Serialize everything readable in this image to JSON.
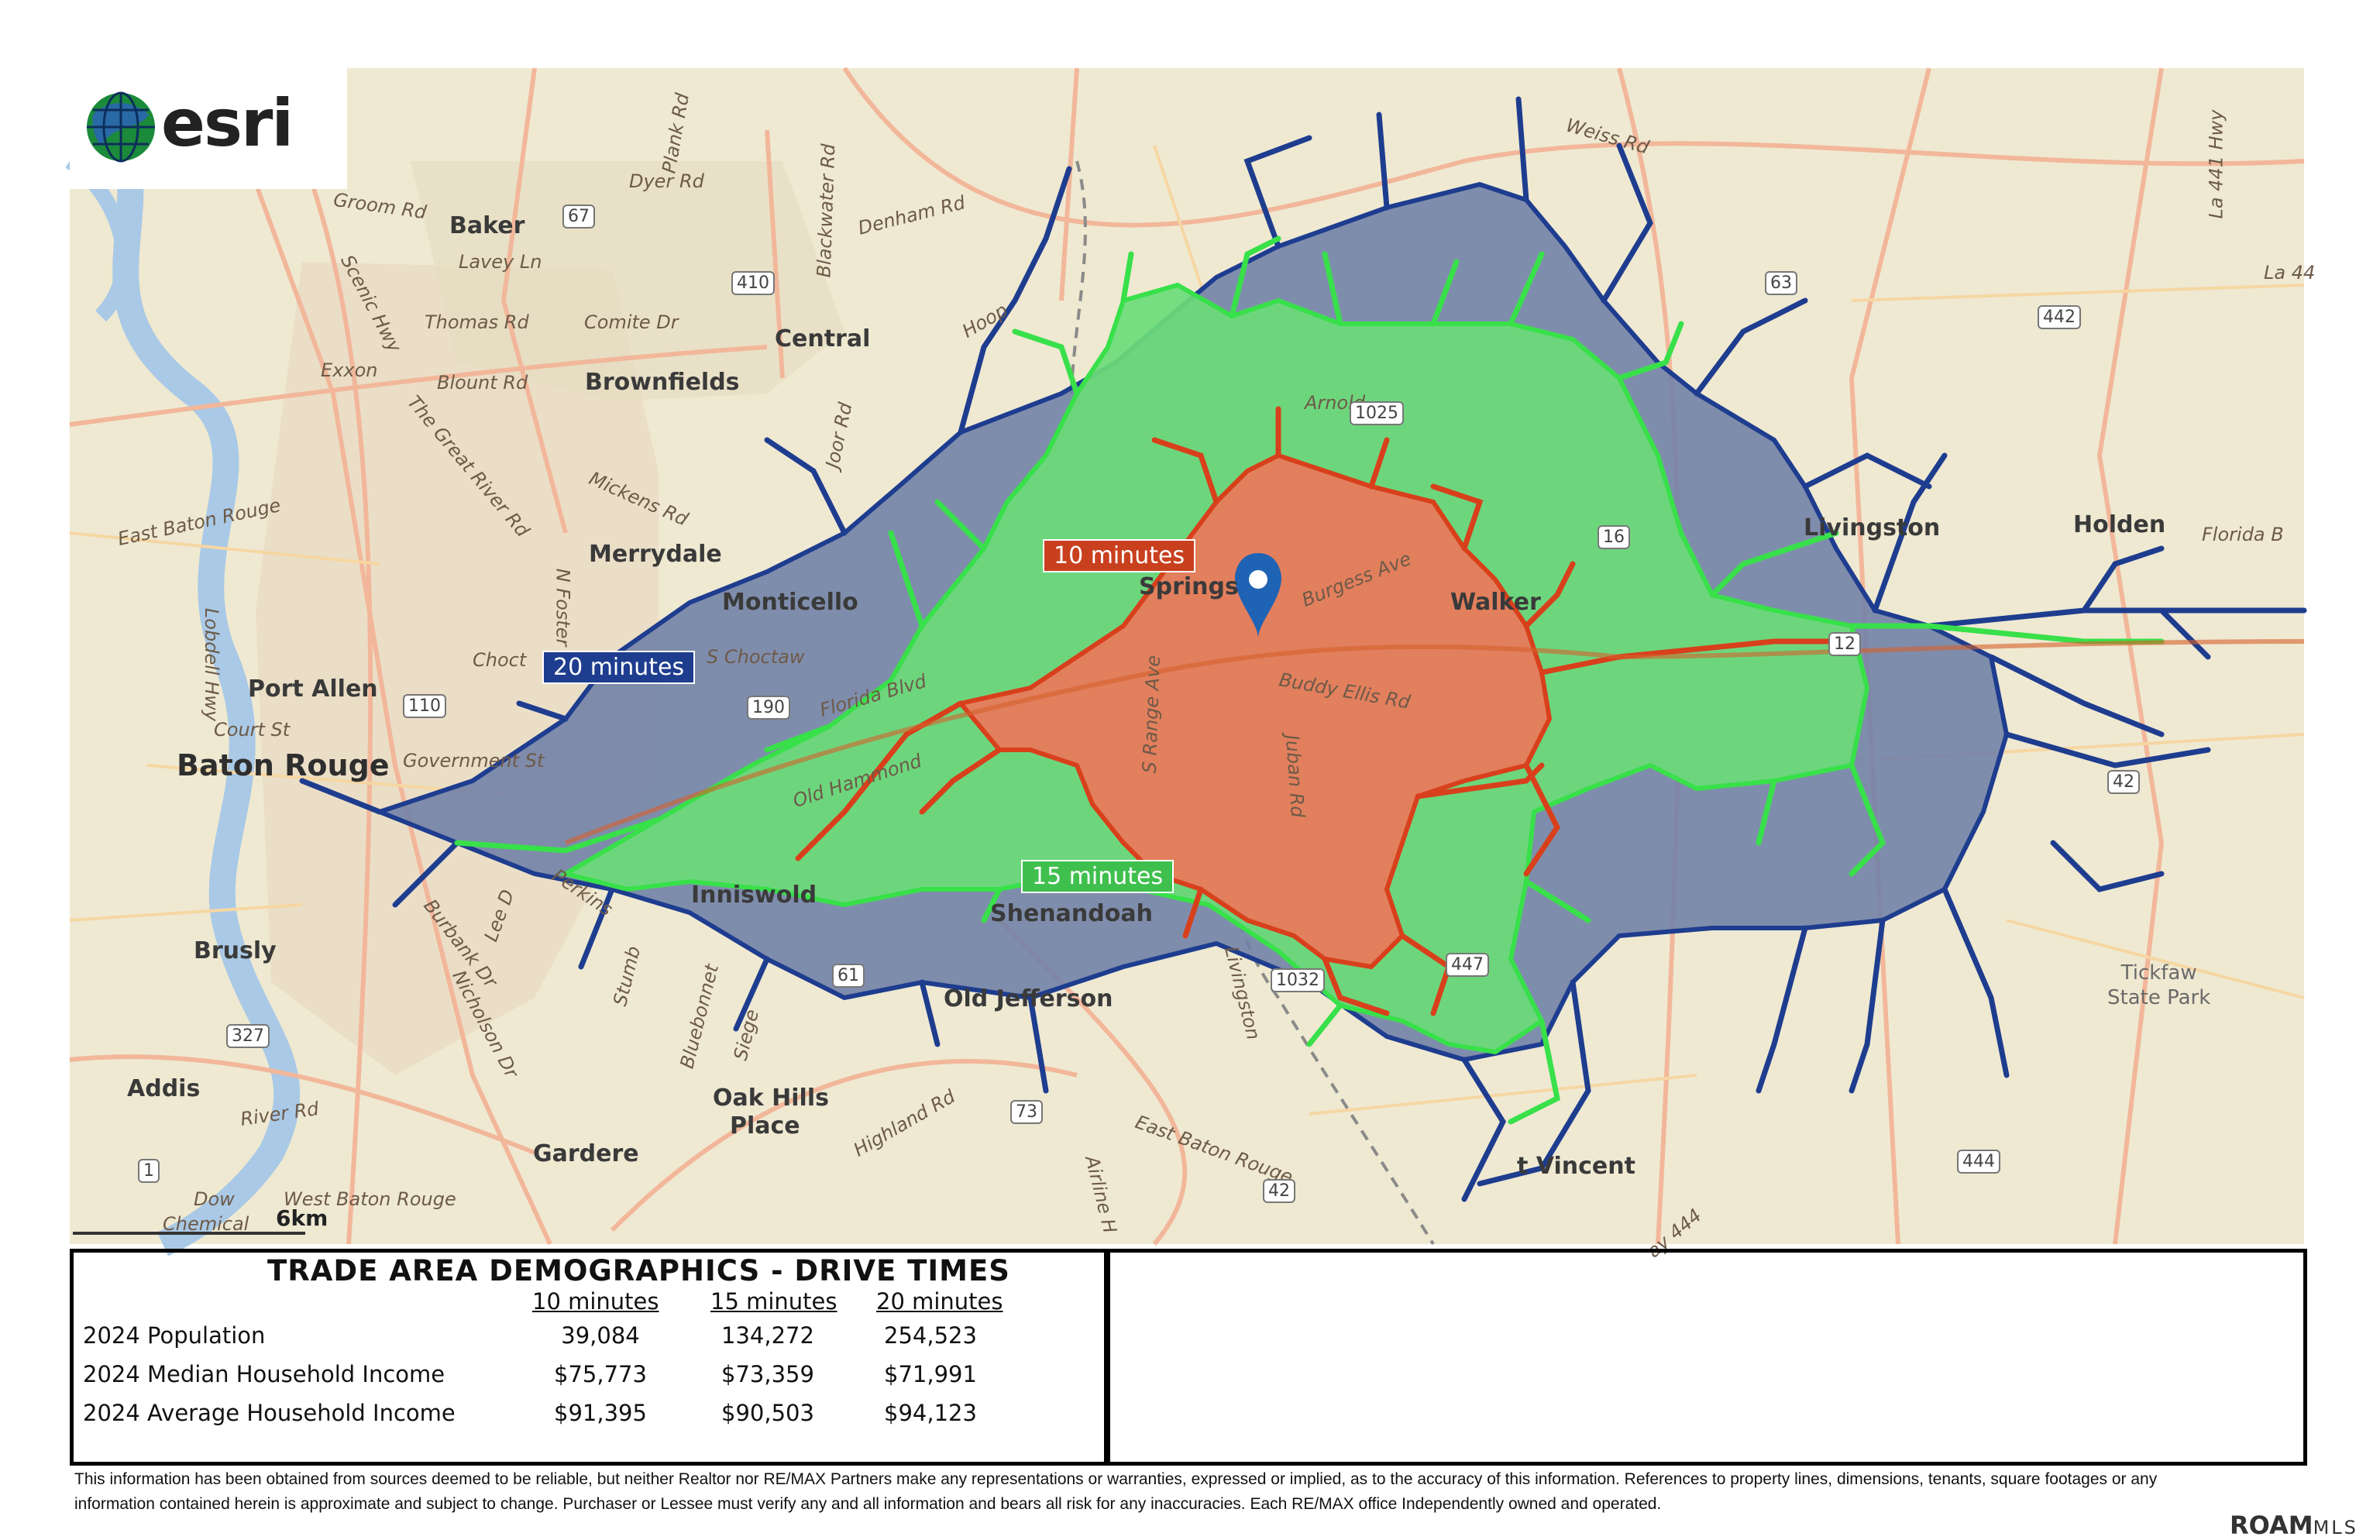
{
  "map": {
    "places": {
      "baker": "Baker",
      "lavey": "Lavey Ln",
      "central": "Central",
      "brownfields": "Brownfields",
      "merrydale": "Merrydale",
      "monticello": "Monticello",
      "port_allen": "Port Allen",
      "baton_rouge": "Baton Rouge",
      "court_st": "Court St",
      "government_st": "Government St",
      "brusly": "Brusly",
      "addis": "Addis",
      "inniswold": "Inniswold",
      "shenandoah": "Shenandoah",
      "old_jefferson": "Old Jefferson",
      "oak_hills": "Oak Hills",
      "place": "Place",
      "gardere": "Gardere",
      "springs": "Springs",
      "walker": "Walker",
      "livingston": "Livingston",
      "holden": "Holden",
      "tickfaw": "Tickfaw",
      "state_park": "State Park",
      "vincent": "t Vincent",
      "dow": "Dow",
      "chemical": "Chemical",
      "west_baton_rouge": "West Baton Rouge",
      "east_baton_rouge": "East Baton Rouge",
      "exxon": "Exxon"
    },
    "roads": {
      "groom": "Groom Rd",
      "dyer": "Dyer Rd",
      "denham": "Denham Rd",
      "weiss": "Weiss Rd",
      "thomas": "Thomas Rd",
      "comite": "Comite Dr",
      "blount": "Blount Rd",
      "great_river": "The Great River Rd",
      "mickens": "Mickens Rd",
      "foster": "N Foster Dr",
      "choctaw": "S Choctaw",
      "choct": "Choct",
      "florida_blvd": "Florida Blvd",
      "old_hammond": "Old Hammond",
      "burgess": "Burgess Ave",
      "buddy_ellis": "Buddy Ellis Rd",
      "juban": "Juban Rd",
      "range": "S Range Ave",
      "arnold": "Arnold",
      "florida_b": "Florida B",
      "river": "River Rd",
      "highland": "Highland Rd",
      "nicholson": "Nicholson Dr",
      "burbank": "Burbank Dr",
      "perkins": "Perkins",
      "airline": "Airline H",
      "la441": "La 441 Hwy",
      "la44": "La 44",
      "livingston_rd": "Livingston",
      "lobdell": "Lobdell Hwy",
      "plank": "Plank Rd",
      "blackwater": "Blackwater Rd",
      "joor": "Joor Rd",
      "east_baton_rouge_line": "East Baton Rouge",
      "hooper": "Hoop",
      "scenic": "Scenic Hwy",
      "lee": "Lee D",
      "stumberg": "Stumb",
      "bluebonnet": "Bluebonnet",
      "siegen": "Siege",
      "ay444": "ay 444"
    },
    "shields": {
      "s67": "67",
      "s410": "410",
      "s63": "63",
      "s442": "442",
      "s110": "110",
      "s190": "190",
      "s61": "61",
      "s327": "327",
      "s73": "73",
      "s42a": "42",
      "s42b": "42",
      "s444": "444",
      "s1": "1",
      "s1025": "1025",
      "s12": "12",
      "s1032": "1032",
      "s447": "447",
      "s16": "16"
    },
    "drive_time_labels": {
      "ten": "10 minutes",
      "fifteen": "15 minutes",
      "twenty": "20 minutes"
    },
    "scale": "6km",
    "colors": {
      "ten": "#e97a5c",
      "fifteen": "#6bdc78",
      "twenty": "#6f7fa6",
      "twenty_edge": "#1e3d8f",
      "fifteen_edge": "#38e04a",
      "ten_edge": "#d8401c",
      "marker": "#1f63b5"
    }
  },
  "logo": {
    "wordmark": "esri"
  },
  "panel": {
    "title": "TRADE AREA DEMOGRAPHICS - DRIVE  TIMES",
    "columns": [
      "10 minutes",
      "15 minutes",
      "20 minutes"
    ],
    "rows": [
      {
        "label": "2024 Population",
        "values": [
          "39,084",
          "134,272",
          "254,523"
        ]
      },
      {
        "label": "2024 Median Household Income",
        "values": [
          "$75,773",
          "$73,359",
          "$71,991"
        ]
      },
      {
        "label": "2024 Average Household Income",
        "values": [
          "$91,395",
          "$90,503",
          "$94,123"
        ]
      }
    ]
  },
  "disclaimer": {
    "line1": "This information has been obtained from sources deemed to be reliable, but neither Realtor nor RE/MAX Partners make any representations or warranties, expressed or implied, as to the accuracy of this information. References to property lines, dimensions, tenants, square footages or any",
    "line2": "information contained herein is approximate and subject to change. Purchaser or Lessee must verify any and all information and bears all risk for any inaccuracies. Each RE/MAX office Independently owned and operated."
  },
  "footer": {
    "brand": "ROAM",
    "brand_suffix": "MLS"
  }
}
